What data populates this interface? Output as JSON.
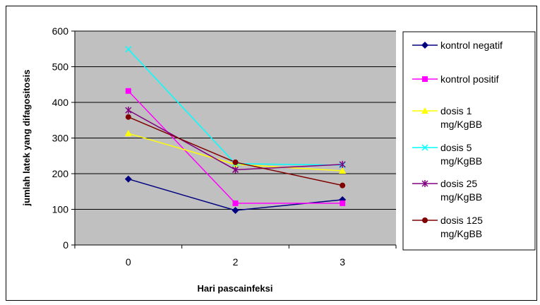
{
  "chart_data": {
    "type": "line",
    "title": "",
    "xlabel": "Hari pascainfeksi",
    "ylabel": "jumlah latek yang difagositosis",
    "categories": [
      "0",
      "2",
      "3"
    ],
    "ylim": [
      0,
      600
    ],
    "yticks": [
      0,
      100,
      200,
      300,
      400,
      500,
      600
    ],
    "grid": true,
    "plot_background": "#c0c0c0",
    "legend_position": "right",
    "series": [
      {
        "name": "kontrol negatif",
        "legend_lines": [
          "kontrol negatif"
        ],
        "values": [
          185,
          97,
          127
        ],
        "color": "#000080",
        "marker": "diamond"
      },
      {
        "name": "kontrol positif",
        "legend_lines": [
          "kontrol positif"
        ],
        "values": [
          432,
          117,
          117
        ],
        "color": "#ff00ff",
        "marker": "square"
      },
      {
        "name": "dosis 1 mg/KgBB",
        "legend_lines": [
          "dosis 1",
          "mg/KgBB"
        ],
        "values": [
          313,
          226,
          208
        ],
        "color": "#ffff00",
        "marker": "triangle"
      },
      {
        "name": "dosis 5 mg/KgBB",
        "legend_lines": [
          "dosis 5",
          "mg/KgBB"
        ],
        "values": [
          549,
          228,
          224
        ],
        "color": "#00ffff",
        "marker": "x"
      },
      {
        "name": "dosis 25 mg/KgBB",
        "legend_lines": [
          "dosis 25",
          "mg/KgBB"
        ],
        "values": [
          378,
          211,
          226
        ],
        "color": "#800080",
        "marker": "asterisk"
      },
      {
        "name": "dosis 125 mg/KgBB",
        "legend_lines": [
          "dosis 125",
          "mg/KgBB"
        ],
        "values": [
          359,
          232,
          167
        ],
        "color": "#800000",
        "marker": "circle"
      }
    ]
  }
}
